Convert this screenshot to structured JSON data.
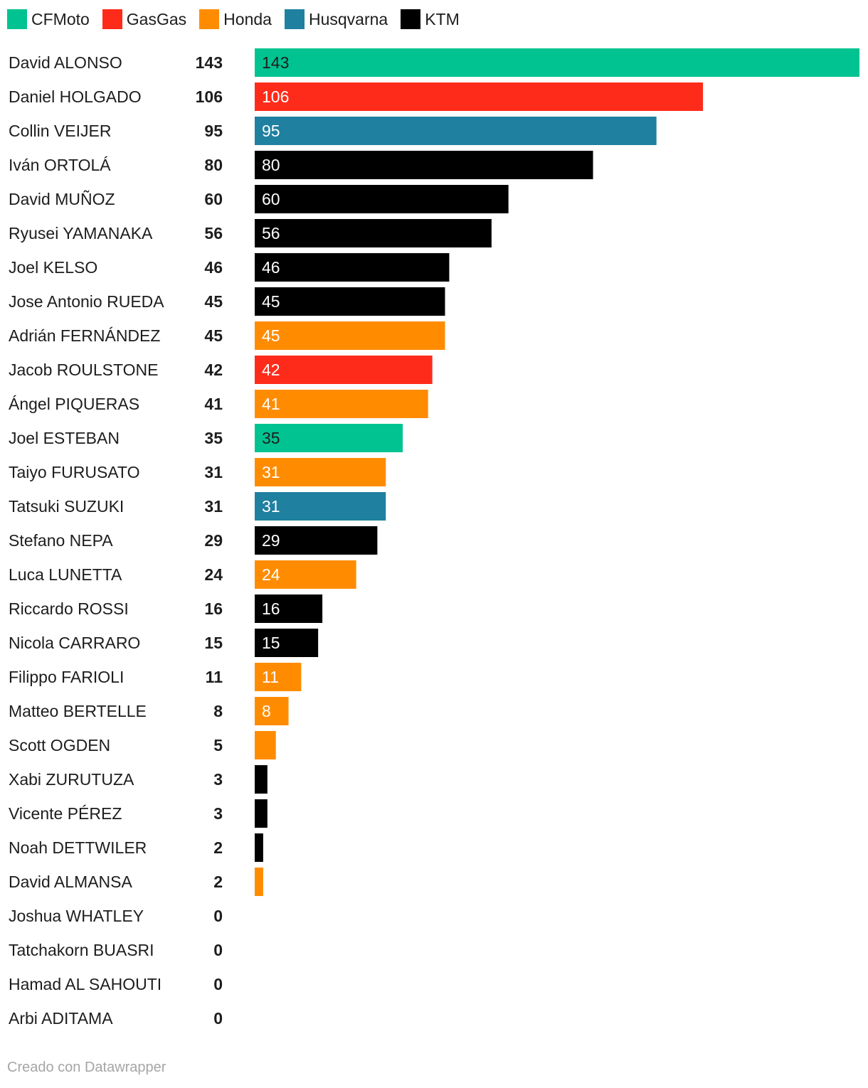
{
  "chart_data": {
    "type": "bar",
    "orientation": "horizontal",
    "legend": [
      {
        "name": "CFMoto",
        "color": "#00c391"
      },
      {
        "name": "GasGas",
        "color": "#ff2b1a"
      },
      {
        "name": "Honda",
        "color": "#ff8c00"
      },
      {
        "name": "Husqvarna",
        "color": "#1f80a0"
      },
      {
        "name": "KTM",
        "color": "#000000"
      }
    ],
    "legend_position": "top-left",
    "xlim": [
      0,
      143
    ],
    "rows": [
      {
        "rider": "David ALONSO",
        "points": 143,
        "team": "CFMoto"
      },
      {
        "rider": "Daniel HOLGADO",
        "points": 106,
        "team": "GasGas"
      },
      {
        "rider": "Collin VEIJER",
        "points": 95,
        "team": "Husqvarna"
      },
      {
        "rider": "Iván ORTOLÁ",
        "points": 80,
        "team": "KTM"
      },
      {
        "rider": "David MUÑOZ",
        "points": 60,
        "team": "KTM"
      },
      {
        "rider": "Ryusei YAMANAKA",
        "points": 56,
        "team": "KTM"
      },
      {
        "rider": "Joel KELSO",
        "points": 46,
        "team": "KTM"
      },
      {
        "rider": "Jose Antonio RUEDA",
        "points": 45,
        "team": "KTM"
      },
      {
        "rider": "Adrián FERNÁNDEZ",
        "points": 45,
        "team": "Honda"
      },
      {
        "rider": "Jacob ROULSTONE",
        "points": 42,
        "team": "GasGas"
      },
      {
        "rider": "Ángel PIQUERAS",
        "points": 41,
        "team": "Honda"
      },
      {
        "rider": "Joel ESTEBAN",
        "points": 35,
        "team": "CFMoto"
      },
      {
        "rider": "Taiyo FURUSATO",
        "points": 31,
        "team": "Honda"
      },
      {
        "rider": "Tatsuki SUZUKI",
        "points": 31,
        "team": "Husqvarna"
      },
      {
        "rider": "Stefano NEPA",
        "points": 29,
        "team": "KTM"
      },
      {
        "rider": "Luca LUNETTA",
        "points": 24,
        "team": "Honda"
      },
      {
        "rider": "Riccardo ROSSI",
        "points": 16,
        "team": "KTM"
      },
      {
        "rider": "Nicola CARRARO",
        "points": 15,
        "team": "KTM"
      },
      {
        "rider": "Filippo FARIOLI",
        "points": 11,
        "team": "Honda"
      },
      {
        "rider": "Matteo BERTELLE",
        "points": 8,
        "team": "Honda"
      },
      {
        "rider": "Scott OGDEN",
        "points": 5,
        "team": "Honda"
      },
      {
        "rider": "Xabi ZURUTUZA",
        "points": 3,
        "team": "KTM"
      },
      {
        "rider": "Vicente PÉREZ",
        "points": 3,
        "team": "KTM"
      },
      {
        "rider": "Noah DETTWILER",
        "points": 2,
        "team": "KTM"
      },
      {
        "rider": "David ALMANSA",
        "points": 2,
        "team": "Honda"
      },
      {
        "rider": "Joshua WHATLEY",
        "points": 0,
        "team": "KTM"
      },
      {
        "rider": "Tatchakorn BUASRI",
        "points": 0,
        "team": "Honda"
      },
      {
        "rider": "Hamad AL SAHOUTI",
        "points": 0,
        "team": "KTM"
      },
      {
        "rider": "Arbi ADITAMA",
        "points": 0,
        "team": "Honda"
      }
    ]
  },
  "credit": "Creado con Datawrapper"
}
